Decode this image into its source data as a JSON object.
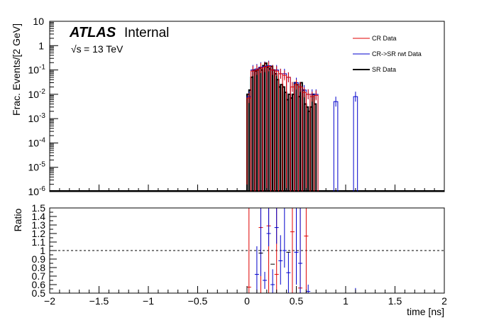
{
  "chart_data": [
    {
      "type": "histogram",
      "panel": "top",
      "ylabel": "Frac. Events/[2 GeV]",
      "ylim": [
        1e-06,
        10
      ],
      "log_y": true,
      "xlim": [
        -2,
        2
      ],
      "bin_width": 0.04,
      "y_ticks": [
        {
          "mant": "10",
          "exp": "-6"
        },
        {
          "mant": "10",
          "exp": "-5"
        },
        {
          "mant": "10",
          "exp": "-4"
        },
        {
          "mant": "10",
          "exp": "-3"
        },
        {
          "mant": "10",
          "exp": "-2"
        },
        {
          "mant": "10",
          "exp": "-1"
        },
        {
          "mant": "1",
          "exp": ""
        },
        {
          "mant": "10",
          "exp": ""
        }
      ],
      "y_tick_values": [
        1e-06,
        1e-05,
        0.0001,
        0.001,
        0.01,
        0.1,
        1,
        10
      ],
      "annotation": {
        "atlas": "ATLAS",
        "status": "Internal",
        "sqrt_symbol": "√s",
        "energy": " = 13 TeV"
      },
      "legend_position": "top-right",
      "legend": [
        {
          "label": "CR Data",
          "color": "#e00000",
          "style": "thin"
        },
        {
          "label": "CR->SR rwt Data",
          "color": "#0000cc",
          "style": "thin"
        },
        {
          "label": "SR Data",
          "color": "#000000",
          "style": "thick"
        }
      ],
      "series": [
        {
          "name": "SR Data",
          "color": "#000000",
          "x_left": [
            0.0,
            0.02,
            0.04,
            0.06,
            0.08,
            0.1,
            0.12,
            0.14,
            0.16,
            0.18,
            0.2,
            0.22,
            0.24,
            0.26,
            0.28,
            0.3,
            0.32,
            0.34,
            0.36,
            0.38,
            0.4,
            0.42,
            0.44,
            0.46,
            0.48,
            0.5,
            0.52,
            0.54,
            0.56,
            0.58,
            0.6,
            0.62,
            0.64,
            0.66,
            0.68
          ],
          "values": [
            0.01,
            0.015,
            0.05,
            0.1,
            0.09,
            0.1,
            0.12,
            0.1,
            0.15,
            0.19,
            0.13,
            0.11,
            0.14,
            0.1,
            0.07,
            0.04,
            0.02,
            0.025,
            0.02,
            0.012,
            0.006,
            0.01,
            0.007,
            0.01,
            0.03,
            0.025,
            0.008,
            0.03,
            0.015,
            0.004,
            0.003,
            0.002,
            0.003,
            0.01,
            0.004
          ]
        },
        {
          "name": "CR->SR rwt Data",
          "color": "#0000cc",
          "x_left": [
            0.0,
            0.04,
            0.08,
            0.12,
            0.16,
            0.2,
            0.24,
            0.28,
            0.32,
            0.36,
            0.4,
            0.44,
            0.48,
            0.52,
            0.56,
            0.6,
            0.64,
            0.68,
            0.88,
            1.08
          ],
          "values": [
            0.008,
            0.1,
            0.11,
            0.13,
            0.14,
            0.15,
            0.1,
            0.1,
            0.07,
            0.07,
            0.05,
            0.02,
            0.03,
            0.02,
            0.015,
            0.01,
            0.01,
            0.01,
            0.005,
            0.008
          ]
        },
        {
          "name": "CR Data",
          "color": "#e00000",
          "x_left": [
            0.0,
            0.04,
            0.08,
            0.12,
            0.16,
            0.2,
            0.24,
            0.28,
            0.32,
            0.36,
            0.4,
            0.44,
            0.48,
            0.52,
            0.56,
            0.6,
            0.64,
            0.68
          ],
          "values": [
            0.007,
            0.09,
            0.1,
            0.12,
            0.13,
            0.14,
            0.1,
            0.09,
            0.07,
            0.06,
            0.05,
            0.02,
            0.025,
            0.02,
            0.012,
            0.01,
            0.008,
            0.009
          ]
        }
      ]
    },
    {
      "type": "scatter",
      "panel": "bottom",
      "xlabel": "time [ns]",
      "ylabel": "Ratio",
      "xlim": [
        -2,
        2
      ],
      "ylim": [
        0.5,
        1.5
      ],
      "x_ticks": [
        "−2",
        "−1.5",
        "−1",
        "−0.5",
        "0",
        "0.5",
        "1",
        "1.5",
        "2"
      ],
      "x_tick_values": [
        -2,
        -1.5,
        -1,
        -0.5,
        0,
        0.5,
        1,
        1.5,
        2
      ],
      "y_ticks": [
        "0.5",
        "0.6",
        "0.7",
        "0.8",
        "0.9",
        "1",
        "1.1",
        "1.2",
        "1.3",
        "1.4",
        "1.5"
      ],
      "y_tick_values": [
        0.5,
        0.6,
        0.7,
        0.8,
        0.9,
        1.0,
        1.1,
        1.2,
        1.3,
        1.4,
        1.5
      ],
      "reference_line": 1.0,
      "series": [
        {
          "name": "CR Data",
          "color": "#e00000",
          "points": [
            {
              "x": 0.02,
              "y": 0.57,
              "lo": 0.5,
              "hi": 1.5
            },
            {
              "x": 0.14,
              "y": 1.27,
              "lo": 0.5,
              "hi": 1.5
            },
            {
              "x": 0.22,
              "y": 1.29,
              "lo": 0.5,
              "hi": 1.5
            },
            {
              "x": 0.3,
              "y": 0.72,
              "lo": 0.5,
              "hi": 1.5
            },
            {
              "x": 0.46,
              "y": 1.22,
              "lo": 0.5,
              "hi": 1.5
            },
            {
              "x": 0.54,
              "y": 0.56,
              "lo": 0.5,
              "hi": 1.5
            },
            {
              "x": 0.6,
              "y": 1.17,
              "lo": 0.5,
              "hi": 1.5
            }
          ]
        },
        {
          "name": "CR->SR rwt Data",
          "color": "#0000cc",
          "points": [
            {
              "x": 0.1,
              "y": 0.72,
              "lo": 0.5,
              "hi": 1.05
            },
            {
              "x": 0.14,
              "y": 0.97,
              "lo": 0.7,
              "hi": 1.5
            },
            {
              "x": 0.18,
              "y": 0.65,
              "lo": 0.55,
              "hi": 0.75
            },
            {
              "x": 0.22,
              "y": 1.2,
              "lo": 1.05,
              "hi": 1.5
            },
            {
              "x": 0.26,
              "y": 0.6,
              "lo": 0.5,
              "hi": 0.78
            },
            {
              "x": 0.3,
              "y": 1.27,
              "lo": 1.08,
              "hi": 1.5
            },
            {
              "x": 0.34,
              "y": 0.88,
              "lo": 0.6,
              "hi": 1.18
            },
            {
              "x": 0.38,
              "y": 1.0,
              "lo": 0.8,
              "hi": 1.5
            },
            {
              "x": 0.42,
              "y": 0.74,
              "lo": 0.5,
              "hi": 0.98
            },
            {
              "x": 0.5,
              "y": 0.98,
              "lo": 0.6,
              "hi": 1.5
            },
            {
              "x": 0.54,
              "y": 0.85,
              "lo": 0.5,
              "hi": 1.5
            },
            {
              "x": 0.62,
              "y": 0.52,
              "lo": 0.5,
              "hi": 0.6
            },
            {
              "x": 1.1,
              "y": 0.5,
              "lo": 0.5,
              "hi": 0.56
            }
          ]
        },
        {
          "name": "SR Data",
          "color": "#000000",
          "points": [
            {
              "x": 0.14,
              "y": 0.97,
              "lo": 0.97,
              "hi": 0.97
            },
            {
              "x": 0.26,
              "y": 0.84,
              "lo": 0.84,
              "hi": 0.84
            },
            {
              "x": 0.42,
              "y": 0.98,
              "lo": 0.98,
              "hi": 0.98
            }
          ]
        }
      ]
    }
  ]
}
